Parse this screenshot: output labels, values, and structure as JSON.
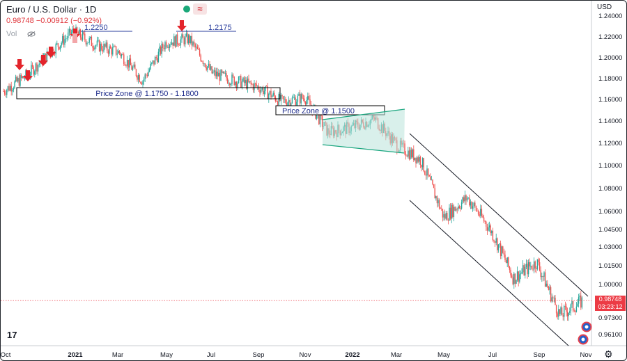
{
  "header": {
    "symbol": "Euro / U.S. Dollar",
    "separator": "·",
    "interval": "1D",
    "last_price": "0.98748",
    "change": "−0.00912",
    "change_pct": "(−0.92%)",
    "volume_label": "Vol",
    "badge_wave": "≈"
  },
  "price_axis": {
    "currency": "USD",
    "labels": [
      "1.24000",
      "1.22000",
      "1.20000",
      "1.18000",
      "1.16000",
      "1.14000",
      "1.12000",
      "1.10000",
      "1.08000",
      "1.06000",
      "1.04500",
      "1.03000",
      "1.01500",
      "1.00000",
      "0.97300",
      "0.96100"
    ],
    "current_price": "0.98748",
    "countdown": "03:23:12"
  },
  "time_axis": {
    "labels": [
      "Oct",
      "2021",
      "Mar",
      "May",
      "Jul",
      "Sep",
      "Nov",
      "2022",
      "Mar",
      "May",
      "Jul",
      "Sep",
      "Nov"
    ]
  },
  "annotations": {
    "peak_1_label": "1.2250",
    "peak_2_label": "1.2175",
    "zone_1_label": "Price Zone @ 1.1750 - 1.1800",
    "zone_2_label": "Price Zone @ 1.1500"
  },
  "colors": {
    "bull": "#26a69a",
    "bear": "#ef5350",
    "arrow": "#e3242b",
    "level_line": "#2b3f9e",
    "triangle_fill": "#b9e3da",
    "triangle_line": "#1aa67f",
    "channel_line": "#131722",
    "price_line": "#ec3b45"
  },
  "chart_data": {
    "type": "candlestick",
    "symbol": "EURUSD",
    "interval": "1D",
    "y_axis_labels": [
      1.24,
      1.22,
      1.2,
      1.18,
      1.16,
      1.14,
      1.12,
      1.1,
      1.08,
      1.06,
      1.045,
      1.03,
      1.015,
      1.0,
      0.973,
      0.961
    ],
    "time_labels": [
      "Oct",
      "2021",
      "Mar",
      "May",
      "Jul",
      "Sep",
      "Nov",
      "2022",
      "Mar",
      "May",
      "Jul",
      "Sep",
      "Nov"
    ],
    "last_close": 0.98748,
    "change": -0.00912,
    "change_pct": -0.92,
    "price_path": [
      [
        "2020-10",
        1.168
      ],
      [
        "2020-11",
        1.183
      ],
      [
        "2020-12",
        1.205
      ],
      [
        "2021-01",
        1.225
      ],
      [
        "2021-02",
        1.212
      ],
      [
        "2021-03",
        1.205
      ],
      [
        "2021-04",
        1.178
      ],
      [
        "2021-05",
        1.215
      ],
      [
        "2021-06",
        1.218
      ],
      [
        "2021-07",
        1.185
      ],
      [
        "2021-08",
        1.178
      ],
      [
        "2021-09",
        1.172
      ],
      [
        "2021-10",
        1.158
      ],
      [
        "2021-11",
        1.162
      ],
      [
        "2021-12",
        1.13
      ],
      [
        "2022-01",
        1.134
      ],
      [
        "2022-02",
        1.142
      ],
      [
        "2022-03",
        1.118
      ],
      [
        "2022-04",
        1.105
      ],
      [
        "2022-05",
        1.055
      ],
      [
        "2022-06",
        1.072
      ],
      [
        "2022-07",
        1.045
      ],
      [
        "2022-08",
        1.005
      ],
      [
        "2022-09",
        1.018
      ],
      [
        "2022-10",
        0.975
      ],
      [
        "2022-11",
        0.987
      ]
    ],
    "levels": [
      {
        "label": "1.2250",
        "value": 1.225
      },
      {
        "label": "1.2175",
        "value": 1.2175
      }
    ],
    "zones": [
      {
        "label": "Price Zone @ 1.1750 - 1.1800",
        "low": 1.175,
        "high": 1.18
      },
      {
        "label": "Price Zone @ 1.1500",
        "value": 1.15
      }
    ]
  }
}
